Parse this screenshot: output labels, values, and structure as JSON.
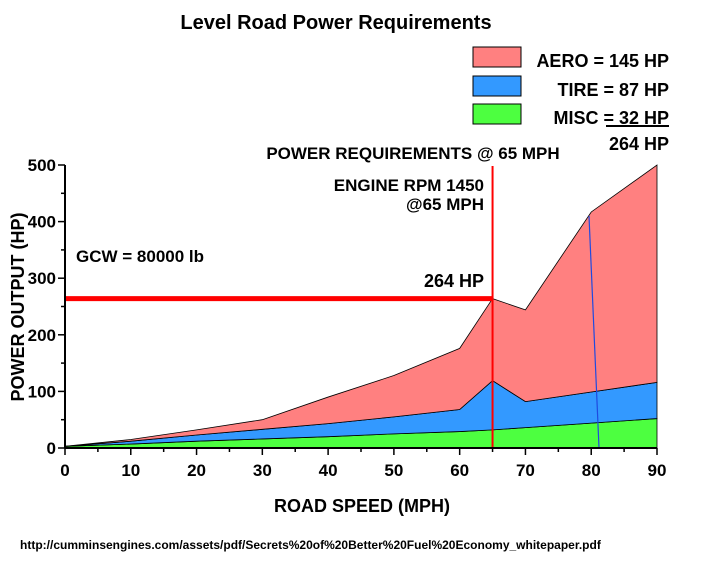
{
  "colors": {
    "aero": "#ff8080",
    "tire": "#3399ff",
    "misc": "#4dff40",
    "highlight": "#ff0000",
    "blue_line": "#1f4ae0",
    "axis": "#000000"
  },
  "legend": {
    "rows": [
      {
        "key": "aero",
        "label": "AERO = 145 HP"
      },
      {
        "key": "tire",
        "label": "TIRE = 87 HP"
      },
      {
        "key": "misc",
        "label": "MISC = 32 HP"
      }
    ],
    "total": "264 HP"
  },
  "annotations": {
    "power_req": "POWER REQUIREMENTS @ 65 MPH",
    "engine_rpm_1": "ENGINE RPM 1450",
    "engine_rpm_2": "@65 MPH",
    "gcw": "GCW = 80000 lb",
    "hp_marker": "264 HP"
  },
  "source_url": "http://cumminsengines.com/assets/pdf/Secrets%20of%20Better%20Fuel%20Economy_whitepaper.pdf",
  "chart_data": {
    "type": "area",
    "stacked": true,
    "title": "Level Road Power Requirements",
    "xlabel": "ROAD SPEED (MPH)",
    "ylabel": "POWER OUTPUT (HP)",
    "xlim": [
      0,
      90
    ],
    "ylim": [
      0,
      500
    ],
    "x_ticks": [
      0,
      10,
      20,
      30,
      40,
      50,
      60,
      70,
      80,
      90
    ],
    "y_ticks": [
      0,
      100,
      200,
      300,
      400,
      500
    ],
    "grid": false,
    "legend_position": "top-right",
    "x": [
      0,
      10,
      20,
      30,
      40,
      50,
      60,
      65,
      70,
      80,
      90
    ],
    "series": [
      {
        "key": "misc",
        "values": [
          3,
          7,
          12,
          16,
          20,
          25,
          29,
          32,
          36,
          44,
          52
        ]
      },
      {
        "key": "tire",
        "values": [
          0,
          5,
          11,
          17,
          23,
          30,
          39,
          87,
          46,
          55,
          64
        ]
      },
      {
        "key": "aero",
        "values": [
          0,
          3,
          9,
          17,
          47,
          73,
          108,
          145,
          162,
          318,
          384
        ]
      }
    ],
    "reference": {
      "x": 65,
      "y": 264
    }
  }
}
